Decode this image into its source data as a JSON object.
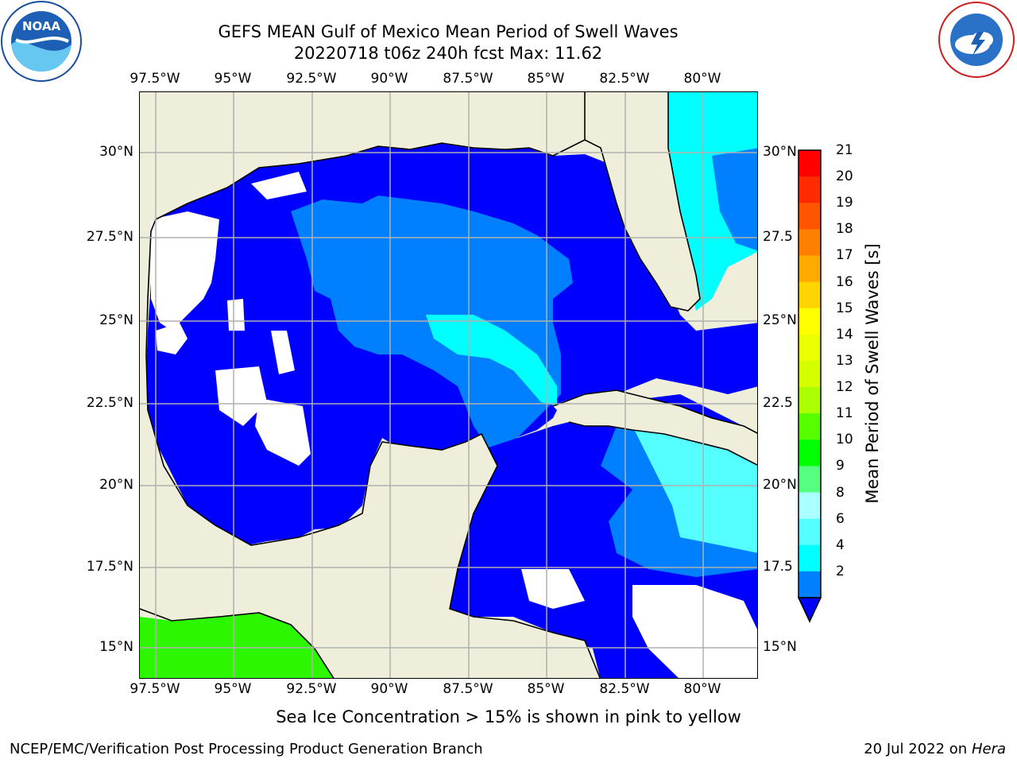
{
  "title": {
    "line1": "GEFS MEAN Gulf of Mexico Mean Period of Swell Waves",
    "line2": "20220718 t06z 240h fcst   Max: 11.62"
  },
  "axes": {
    "longitudes": [
      "97.5°W",
      "95°W",
      "92.5°W",
      "90°W",
      "87.5°W",
      "85°W",
      "82.5°W",
      "80°W"
    ],
    "latitudes_left": [
      "30°N",
      "27.5°N",
      "25°N",
      "22.5°N",
      "20°N",
      "17.5°N",
      "15°N"
    ],
    "latitudes_right": [
      "30°N",
      "27.5",
      "25°N",
      "22.5",
      "20°N",
      "17.5",
      "15°N"
    ]
  },
  "colorbar": {
    "label": "Mean Period of Swell Waves [s]",
    "ticks": [
      "21",
      "20",
      "19",
      "18",
      "17",
      "16",
      "15",
      "14",
      "13",
      "12",
      "11",
      "10",
      "9",
      "8",
      "6",
      "4",
      "2"
    ],
    "colors": [
      "#ff0000",
      "#ff2a00",
      "#ff5500",
      "#ff7f00",
      "#ffaa00",
      "#ffd400",
      "#ffff00",
      "#eaff00",
      "#d4ff00",
      "#aaff00",
      "#55ff00",
      "#00ff00",
      "#55ff80",
      "#aaffff",
      "#55ffff",
      "#00ffff",
      "#0080ff"
    ],
    "extend_color": "#0000ff"
  },
  "colors": {
    "land": "#efeedb",
    "ocean_low": "#0000ff",
    "ocean_mid": "#0080ff",
    "ocean_high": "#00ffff",
    "ocean_light": "#55ffff",
    "ice_green": "#2cf700",
    "grid": "#b0b0b0"
  },
  "note": "Sea Ice Concentration > 15% is shown in pink to yellow",
  "footer": {
    "left": "NCEP/EMC/Verification Post Processing Product Generation Branch",
    "right_date": "20 Jul 2022 on ",
    "right_host": "Hera"
  },
  "logos": {
    "left": "noaa-logo-icon",
    "right": "nws-logo-icon"
  }
}
